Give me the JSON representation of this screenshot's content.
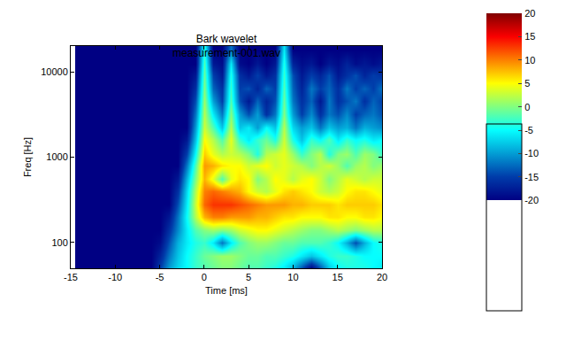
{
  "chart_data": {
    "type": "heatmap",
    "title": "Bark wavelet",
    "subtitle": "measurement-001.wav",
    "x_label": "Time [ms]",
    "y_label": "Freq [Hz]",
    "log": "y",
    "grid": true,
    "xlim": [
      -15,
      20
    ],
    "xticks": [
      -15,
      -10,
      -5,
      0,
      5,
      10,
      15,
      20
    ],
    "ylim": [
      50,
      20000
    ],
    "yticks": [
      100,
      1000,
      10000
    ],
    "zlim": [
      -20,
      20
    ],
    "zticks": [
      -20,
      -15,
      -10,
      -5,
      0,
      5,
      10,
      15,
      20
    ],
    "x": [
      -15,
      -14,
      -13,
      -12,
      -11,
      -10,
      -9,
      -8,
      -7,
      -6,
      -5,
      -4,
      -3,
      -2,
      -1,
      0,
      1,
      2,
      3,
      4,
      5,
      6,
      7,
      8,
      9,
      10,
      11,
      12,
      13,
      14,
      15,
      16,
      17,
      18,
      19,
      20
    ],
    "y": [
      50,
      70,
      100,
      140,
      200,
      280,
      400,
      560,
      800,
      1100,
      1600,
      2200,
      3200,
      4500,
      6300,
      9000,
      12500,
      18000
    ],
    "z": [
      [
        null,
        -20,
        -20,
        -20,
        -20,
        -20,
        -20,
        -20,
        -20,
        -20,
        -15,
        -10,
        -7,
        -5,
        -3,
        -2,
        -1,
        0,
        0,
        -1,
        -2,
        -2,
        -3,
        -4,
        -6,
        -9,
        -14,
        -20,
        -14,
        -8,
        -5,
        -4,
        -4,
        -4,
        -5,
        -6
      ],
      [
        null,
        -20,
        -20,
        -20,
        -20,
        -20,
        -20,
        -20,
        -20,
        -20,
        -17,
        -12,
        -8,
        -5,
        -3,
        -1,
        0,
        1,
        1,
        0,
        -1,
        -1,
        -2,
        -2,
        -3,
        -4,
        -6,
        -8,
        -6,
        -4,
        -3,
        -3,
        -4,
        -5,
        -5,
        -5
      ],
      [
        null,
        -20,
        -20,
        -20,
        -20,
        -20,
        -20,
        -20,
        -20,
        -20,
        -19,
        -14,
        -9,
        -6,
        -4,
        -3,
        -6,
        -12,
        -6,
        -2,
        0,
        1,
        1,
        0,
        -1,
        -1,
        -2,
        -2,
        -2,
        -3,
        -5,
        -9,
        -14,
        -9,
        -5,
        -4
      ],
      [
        null,
        -20,
        -20,
        -20,
        -20,
        -20,
        -20,
        -20,
        -20,
        -20,
        -20,
        -16,
        -11,
        -6,
        -2,
        0,
        1,
        0,
        1,
        3,
        4,
        5,
        5,
        4,
        3,
        2,
        1,
        0,
        0,
        1,
        2,
        1,
        0,
        1,
        2,
        2
      ],
      [
        null,
        -20,
        -20,
        -20,
        -20,
        -20,
        -20,
        -20,
        -20,
        -20,
        -20,
        -18,
        -12,
        -5,
        2,
        8,
        10,
        10,
        9,
        9,
        9,
        8,
        8,
        7,
        6,
        6,
        5,
        5,
        5,
        6,
        6,
        5,
        5,
        6,
        6,
        5
      ],
      [
        null,
        -20,
        -20,
        -20,
        -20,
        -20,
        -20,
        -20,
        -20,
        -20,
        -20,
        -20,
        -14,
        -6,
        3,
        11,
        13,
        13,
        13,
        12,
        11,
        10,
        9,
        9,
        9,
        8,
        8,
        7,
        7,
        7,
        6,
        7,
        7,
        7,
        7,
        6
      ],
      [
        null,
        -20,
        -20,
        -20,
        -20,
        -20,
        -20,
        -20,
        -20,
        -20,
        -20,
        -20,
        -16,
        -7,
        2,
        10,
        11,
        10,
        9,
        8,
        5,
        3,
        2,
        4,
        6,
        7,
        6,
        5,
        3,
        2,
        3,
        5,
        6,
        6,
        5,
        4
      ],
      [
        null,
        -20,
        -20,
        -20,
        -20,
        -20,
        -20,
        -20,
        -20,
        -20,
        -20,
        -20,
        -18,
        -9,
        0,
        8,
        4,
        -2,
        4,
        6,
        5,
        0,
        2,
        5,
        4,
        2,
        4,
        5,
        3,
        0,
        2,
        4,
        3,
        2,
        3,
        3
      ],
      [
        null,
        -20,
        -20,
        -20,
        -20,
        -20,
        -20,
        -20,
        -20,
        -20,
        -20,
        -20,
        -20,
        -12,
        -2,
        9,
        8,
        6,
        5,
        5,
        3,
        4,
        5,
        3,
        4,
        3,
        2,
        0,
        2,
        3,
        1,
        -2,
        1,
        2,
        0,
        1
      ],
      [
        null,
        -20,
        -20,
        -20,
        -20,
        -20,
        -20,
        -20,
        -20,
        -20,
        -20,
        -20,
        -20,
        -15,
        -5,
        7,
        4,
        2,
        3,
        2,
        0,
        -4,
        2,
        3,
        4,
        1,
        -3,
        0,
        2,
        -4,
        0,
        1,
        -2,
        1,
        0,
        -3
      ],
      [
        null,
        -20,
        -20,
        -20,
        -20,
        -20,
        -20,
        -20,
        -20,
        -20,
        -20,
        -20,
        -20,
        -18,
        -8,
        5,
        2,
        -2,
        4,
        -3,
        -6,
        -3,
        -1,
        -4,
        3,
        -4,
        -8,
        -3,
        -5,
        -2,
        -6,
        -3,
        -5,
        -4,
        -6,
        -5
      ],
      [
        null,
        -20,
        -20,
        -20,
        -20,
        -20,
        -20,
        -20,
        -20,
        -20,
        -20,
        -20,
        -20,
        -20,
        -10,
        3,
        -2,
        -8,
        2,
        -8,
        -6,
        -10,
        -5,
        -8,
        2,
        -7,
        -10,
        -8,
        -12,
        -8,
        -10,
        -9,
        -12,
        -9,
        -10,
        -11
      ],
      [
        null,
        -20,
        -20,
        -20,
        -20,
        -20,
        -20,
        -20,
        -20,
        -20,
        -20,
        -20,
        -20,
        -20,
        -12,
        2,
        -6,
        -12,
        0,
        -10,
        -14,
        -10,
        -16,
        -12,
        0,
        -10,
        -15,
        -11,
        -16,
        -12,
        -14,
        -11,
        -15,
        -13,
        -12,
        -14
      ],
      [
        null,
        -20,
        -20,
        -20,
        -20,
        -20,
        -20,
        -20,
        -20,
        -20,
        -20,
        -20,
        -20,
        -20,
        -14,
        1,
        -10,
        -15,
        -2,
        -14,
        -18,
        -13,
        -17,
        -14,
        -1,
        -12,
        -16,
        -13,
        -18,
        -12,
        -16,
        -14,
        -12,
        -16,
        -13,
        -15
      ],
      [
        null,
        -20,
        -20,
        -20,
        -20,
        -20,
        -20,
        -20,
        -20,
        -20,
        -20,
        -20,
        -20,
        -20,
        -16,
        0,
        -13,
        -16,
        -3,
        -15,
        -14,
        -17,
        -13,
        -15,
        -2,
        -13,
        -17,
        -12,
        -15,
        -13,
        -16,
        -12,
        -15,
        -13,
        -15,
        -12
      ],
      [
        null,
        -20,
        -20,
        -20,
        -20,
        -20,
        -20,
        -20,
        -20,
        -20,
        -20,
        -20,
        -20,
        -20,
        -18,
        -1,
        -15,
        -18,
        -4,
        -16,
        -18,
        -15,
        -18,
        -16,
        -3,
        -14,
        -18,
        -15,
        -17,
        -14,
        -18,
        -16,
        -14,
        -17,
        -15,
        -16
      ],
      [
        null,
        -20,
        -20,
        -20,
        -20,
        -20,
        -20,
        -20,
        -20,
        -20,
        -20,
        -20,
        -20,
        -20,
        -20,
        -2,
        -18,
        -19,
        -6,
        -19,
        -20,
        -18,
        -20,
        -18,
        -4,
        -17,
        -19,
        -18,
        -20,
        -18,
        -19,
        -17,
        -19,
        -18,
        -19,
        -18
      ],
      [
        null,
        -20,
        -20,
        -20,
        -20,
        -20,
        -20,
        -20,
        -20,
        -20,
        -20,
        -20,
        -20,
        -20,
        -20,
        -4,
        -20,
        -20,
        -12,
        -20,
        -20,
        -20,
        -20,
        -20,
        -6,
        -20,
        -20,
        -20,
        -20,
        -20,
        -20,
        -20,
        -20,
        -20,
        -20,
        -20
      ]
    ]
  }
}
